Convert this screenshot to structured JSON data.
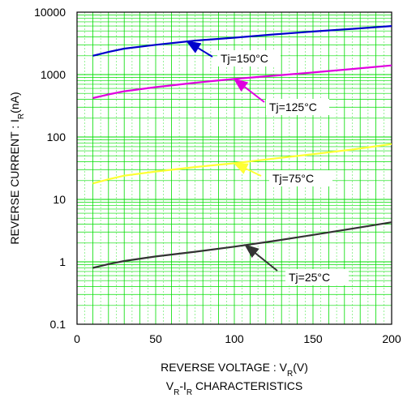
{
  "chart_data": {
    "type": "line",
    "xlabel": "REVERSE VOLTAGE : V_R(V)",
    "ylabel": "REVERSE CURRENT : I_R(nA)",
    "caption": "V_R-I_R CHARACTERISTICS",
    "xlim": [
      0,
      200
    ],
    "ylim": [
      0.1,
      10000
    ],
    "yscale": "log",
    "grid": true,
    "x_ticks": [
      "0",
      "50",
      "100",
      "150",
      "200"
    ],
    "y_ticks": [
      "0.1",
      "1",
      "10",
      "100",
      "1000",
      "10000"
    ],
    "series": [
      {
        "name": "Tj=150°C",
        "color": "#0000cc",
        "x": [
          10,
          20,
          30,
          50,
          75,
          100,
          125,
          150,
          175,
          200
        ],
        "y": [
          2000,
          2300,
          2600,
          3000,
          3500,
          3900,
          4400,
          4900,
          5400,
          6000
        ]
      },
      {
        "name": "Tj=125°C",
        "color": "#e000e0",
        "x": [
          10,
          20,
          30,
          50,
          75,
          100,
          125,
          150,
          175,
          200
        ],
        "y": [
          420,
          480,
          540,
          630,
          740,
          850,
          960,
          1080,
          1230,
          1400
        ]
      },
      {
        "name": "Tj=75°C",
        "color": "#ffff33",
        "x": [
          10,
          20,
          30,
          50,
          75,
          100,
          125,
          150,
          175,
          200
        ],
        "y": [
          18,
          21,
          24,
          28,
          33,
          38,
          45,
          53,
          63,
          77
        ]
      },
      {
        "name": "Tj=25°C",
        "color": "#333333",
        "x": [
          10,
          20,
          30,
          50,
          75,
          100,
          125,
          150,
          175,
          200
        ],
        "y": [
          0.8,
          0.92,
          1.03,
          1.22,
          1.45,
          1.75,
          2.15,
          2.7,
          3.4,
          4.3
        ]
      }
    ],
    "annotations": [
      {
        "label": "Tj=150°C",
        "series": 0
      },
      {
        "label": "Tj=125°C",
        "series": 1
      },
      {
        "label": "Tj=75°C",
        "series": 2
      },
      {
        "label": "Tj=25°C",
        "series": 3
      }
    ],
    "colors": {
      "grid": "#00dd00",
      "frame": "#000000"
    }
  }
}
